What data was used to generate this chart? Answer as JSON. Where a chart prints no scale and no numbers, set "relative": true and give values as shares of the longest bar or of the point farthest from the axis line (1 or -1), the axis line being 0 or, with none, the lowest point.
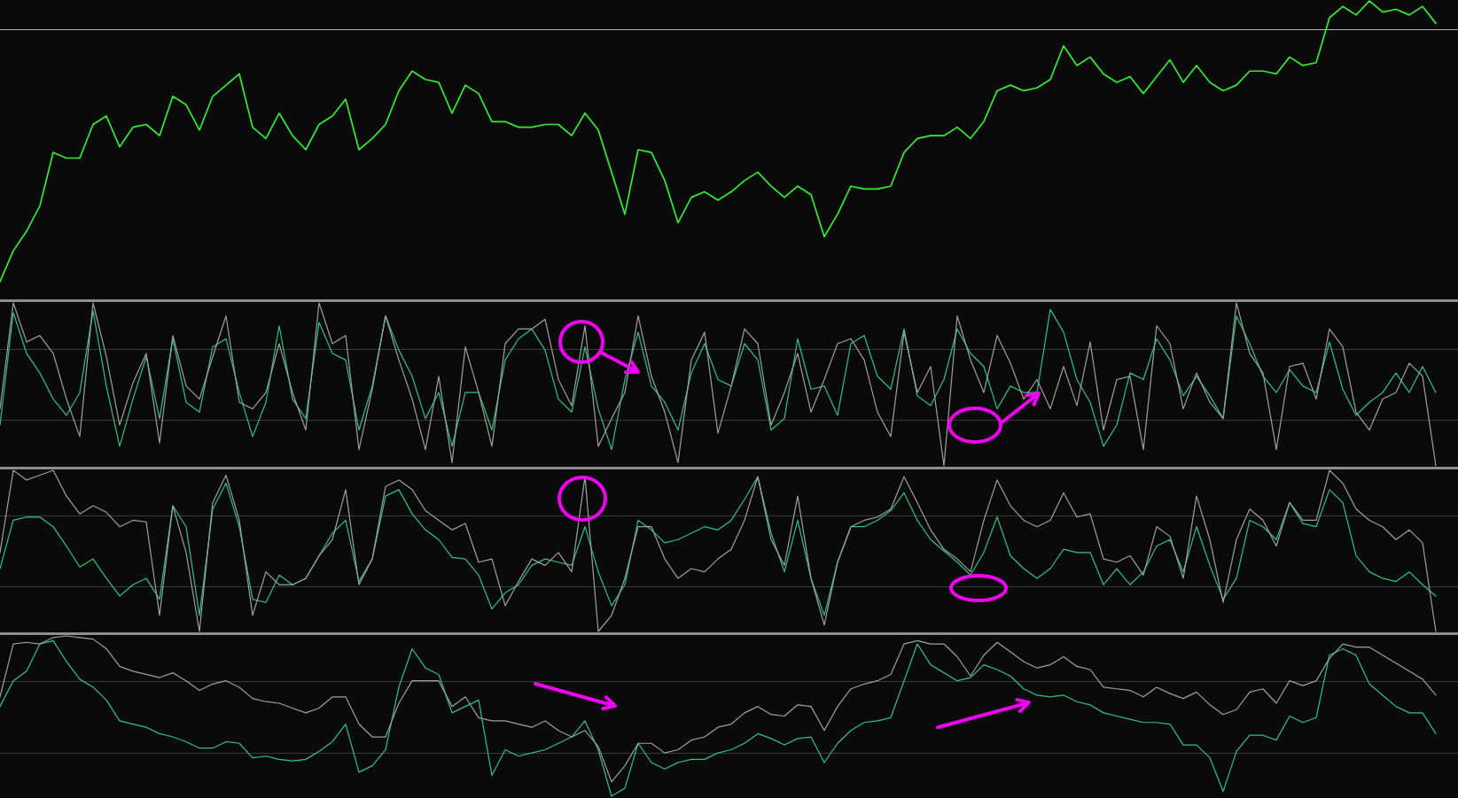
{
  "chart_data": [
    {
      "type": "line",
      "relative": true,
      "categories": [
        null,
        null,
        null,
        null,
        null,
        null,
        null,
        null,
        null,
        null,
        null,
        null,
        null,
        null,
        null,
        null,
        null,
        null,
        null,
        null,
        null,
        null,
        null,
        null,
        null,
        null,
        null,
        null,
        null,
        null,
        null,
        null,
        null,
        null,
        null,
        null,
        null,
        null,
        null,
        null,
        null,
        null,
        null,
        null,
        null,
        null,
        null,
        null,
        null,
        null,
        null,
        null,
        null,
        null,
        null,
        null,
        null,
        null,
        null,
        null,
        null,
        null,
        null,
        null,
        null,
        null,
        null,
        null,
        null,
        null,
        null,
        null,
        null,
        null,
        null,
        null,
        null,
        null,
        null,
        null,
        null,
        null,
        null,
        null,
        null,
        null,
        null,
        null,
        null,
        null,
        null,
        null,
        null,
        null,
        null,
        null,
        null,
        null,
        null,
        null,
        null,
        null,
        null,
        null,
        null,
        null,
        null,
        null,
        null
      ],
      "series": [
        {
          "color": "#33ee33",
          "values": [
            0.0,
            0.11,
            0.18,
            0.27,
            0.46,
            0.44,
            0.44,
            0.56,
            0.59,
            0.48,
            0.55,
            0.56,
            0.52,
            0.66,
            0.63,
            0.54,
            0.66,
            0.7,
            0.74,
            0.55,
            0.51,
            0.6,
            0.52,
            0.47,
            0.56,
            0.59,
            0.65,
            0.47,
            0.51,
            0.56,
            0.68,
            0.75,
            0.72,
            0.71,
            0.6,
            0.7,
            0.67,
            0.57,
            0.57,
            0.55,
            0.55,
            0.56,
            0.56,
            0.52,
            0.6,
            0.54,
            0.39,
            0.24,
            0.47,
            0.46,
            0.36,
            0.21,
            0.3,
            0.32,
            0.29,
            0.32,
            0.36,
            0.39,
            0.34,
            0.3,
            0.34,
            0.31,
            0.16,
            0.24,
            0.34,
            0.33,
            0.33,
            0.34,
            0.46,
            0.51,
            0.52,
            0.52,
            0.55,
            0.51,
            0.57,
            0.68,
            0.7,
            0.68,
            0.69,
            0.72,
            0.84,
            0.77,
            0.8,
            0.74,
            0.71,
            0.73,
            0.67,
            0.73,
            0.79,
            0.71,
            0.77,
            0.71,
            0.68,
            0.7,
            0.75,
            0.75,
            0.74,
            0.8,
            0.77,
            0.78,
            0.94,
            0.98,
            0.95,
            1.0,
            0.96,
            0.97,
            0.95,
            0.98,
            0.92
          ]
        }
      ],
      "ref_lines": [
        {
          "axis": "y",
          "value": 0.9,
          "color": "#b4b4b4"
        }
      ]
    },
    {
      "type": "line",
      "relative": true,
      "categories": [
        null,
        null,
        null,
        null,
        null,
        null,
        null,
        null,
        null,
        null,
        null,
        null,
        null,
        null,
        null,
        null,
        null,
        null,
        null,
        null,
        null,
        null,
        null,
        null,
        null,
        null,
        null,
        null,
        null,
        null,
        null,
        null,
        null,
        null,
        null,
        null,
        null,
        null,
        null,
        null,
        null,
        null,
        null,
        null,
        null,
        null,
        null,
        null,
        null,
        null,
        null,
        null,
        null,
        null,
        null,
        null,
        null,
        null,
        null,
        null,
        null,
        null,
        null,
        null,
        null,
        null,
        null,
        null,
        null,
        null,
        null,
        null,
        null,
        null,
        null,
        null,
        null,
        null,
        null,
        null,
        null,
        null,
        null,
        null,
        null,
        null,
        null,
        null,
        null,
        null,
        null,
        null,
        null,
        null,
        null,
        null,
        null,
        null,
        null,
        null,
        null,
        null,
        null,
        null,
        null,
        null,
        null,
        null,
        null
      ],
      "series": [
        {
          "color": "#a0a0a0",
          "values": [
            0.35,
            1,
            0.76,
            0.8,
            0.69,
            0.41,
            0.18,
            1,
            0.67,
            0.25,
            0.51,
            0.69,
            0.14,
            0.8,
            0.49,
            0.41,
            0.67,
            0.92,
            0.39,
            0.35,
            0.45,
            0.75,
            0.45,
            0.22,
            1,
            0.75,
            0.8,
            0.1,
            0.47,
            0.92,
            0.65,
            0.41,
            0.1,
            0.55,
            0.02,
            0.73,
            0.45,
            0.12,
            0.75,
            0.84,
            0.84,
            0.9,
            0.53,
            0.37,
            0.86,
            0.12,
            0.29,
            0.45,
            0.92,
            0.55,
            0.33,
            0.02,
            0.65,
            0.82,
            0.2,
            0.49,
            0.84,
            0.75,
            0.25,
            0.45,
            0.69,
            0.33,
            0.53,
            0.75,
            0.78,
            0.65,
            0.33,
            0.18,
            0.82,
            0.45,
            0.61,
            0,
            0.92,
            0.65,
            0.45,
            0.8,
            0.63,
            0.41,
            0.53,
            0.35,
            0.61,
            0.37,
            0.76,
            0.22,
            0.53,
            0.55,
            0.1,
            0.86,
            0.75,
            0.35,
            0.57,
            0.39,
            0.29,
            1,
            0.69,
            0.57,
            0.1,
            0.61,
            0.63,
            0.41,
            0.84,
            0.73,
            0.33,
            0.22,
            0.41,
            0.45,
            0.63,
            0.55,
            0
          ]
        },
        {
          "color": "#2fc487",
          "values": [
            0.25,
            0.94,
            0.69,
            0.57,
            0.41,
            0.31,
            0.45,
            0.95,
            0.49,
            0.12,
            0.41,
            0.67,
            0.29,
            0.78,
            0.39,
            0.33,
            0.73,
            0.78,
            0.45,
            0.18,
            0.39,
            0.86,
            0.41,
            0.29,
            0.88,
            0.69,
            0.65,
            0.22,
            0.49,
            0.92,
            0.71,
            0.55,
            0.29,
            0.45,
            0.12,
            0.45,
            0.45,
            0.22,
            0.65,
            0.78,
            0.84,
            0.71,
            0.41,
            0.33,
            0.73,
            0.35,
            0.1,
            0.53,
            0.82,
            0.49,
            0.39,
            0.22,
            0.57,
            0.75,
            0.53,
            0.49,
            0.75,
            0.65,
            0.22,
            0.29,
            0.78,
            0.47,
            0.49,
            0.31,
            0.75,
            0.8,
            0.55,
            0.47,
            0.84,
            0.43,
            0.37,
            0.53,
            0.84,
            0.69,
            0.61,
            0.35,
            0.49,
            0.45,
            0.45,
            0.96,
            0.82,
            0.53,
            0.39,
            0.12,
            0.25,
            0.57,
            0.53,
            0.78,
            0.65,
            0.43,
            0.55,
            0.43,
            0.29,
            0.92,
            0.75,
            0.55,
            0.45,
            0.59,
            0.49,
            0.45,
            0.76,
            0.47,
            0.31,
            0.39,
            0.45,
            0.57,
            0.45,
            0.61,
            0.45
          ]
        }
      ],
      "ref_lines": [
        {
          "axis": "y",
          "value": 0.72,
          "color": "#3a3a3a"
        },
        {
          "axis": "y",
          "value": 0.28,
          "color": "#3a3a3a"
        }
      ]
    },
    {
      "type": "line",
      "relative": true,
      "categories": [
        null,
        null,
        null,
        null,
        null,
        null,
        null,
        null,
        null,
        null,
        null,
        null,
        null,
        null,
        null,
        null,
        null,
        null,
        null,
        null,
        null,
        null,
        null,
        null,
        null,
        null,
        null,
        null,
        null,
        null,
        null,
        null,
        null,
        null,
        null,
        null,
        null,
        null,
        null,
        null,
        null,
        null,
        null,
        null,
        null,
        null,
        null,
        null,
        null,
        null,
        null,
        null,
        null,
        null,
        null,
        null,
        null,
        null,
        null,
        null,
        null,
        null,
        null,
        null,
        null,
        null,
        null,
        null,
        null,
        null,
        null,
        null,
        null,
        null,
        null,
        null,
        null,
        null,
        null,
        null,
        null,
        null,
        null,
        null,
        null,
        null,
        null,
        null,
        null,
        null,
        null,
        null,
        null,
        null,
        null,
        null,
        null,
        null,
        null,
        null,
        null,
        null,
        null,
        null,
        null,
        null,
        null,
        null,
        null
      ],
      "series": [
        {
          "color": "#a0a0a0",
          "values": [
            0.49,
            1,
            0.94,
            0.97,
            1,
            0.84,
            0.73,
            0.78,
            0.74,
            0.65,
            0.69,
            0.68,
            0.1,
            0.78,
            0.49,
            0,
            0.8,
            0.97,
            0.69,
            0.1,
            0.37,
            0.29,
            0.29,
            0.33,
            0.47,
            0.57,
            0.88,
            0.29,
            0.45,
            0.9,
            0.94,
            0.88,
            0.75,
            0.69,
            0.63,
            0.67,
            0.43,
            0.45,
            0.16,
            0.31,
            0.45,
            0.41,
            0.49,
            0.37,
            0.96,
            0,
            0.1,
            0.33,
            0.65,
            0.65,
            0.45,
            0.33,
            0.39,
            0.37,
            0.45,
            0.51,
            0.69,
            0.96,
            0.57,
            0.41,
            0.84,
            0.33,
            0.04,
            0.43,
            0.65,
            0.69,
            0.71,
            0.76,
            0.96,
            0.8,
            0.63,
            0.51,
            0.45,
            0.37,
            0.69,
            0.94,
            0.78,
            0.69,
            0.65,
            0.69,
            0.86,
            0.71,
            0.73,
            0.45,
            0.43,
            0.47,
            0.35,
            0.65,
            0.59,
            0.33,
            0.84,
            0.57,
            0.18,
            0.57,
            0.76,
            0.69,
            0.53,
            0.8,
            0.69,
            0.69,
            1,
            0.92,
            0.76,
            0.69,
            0.65,
            0.57,
            0.63,
            0.55,
            0
          ]
        },
        {
          "color": "#2fc487",
          "values": [
            0.39,
            0.69,
            0.71,
            0.71,
            0.65,
            0.53,
            0.4,
            0.45,
            0.33,
            0.22,
            0.29,
            0.33,
            0.2,
            0.78,
            0.65,
            0.1,
            0.76,
            0.92,
            0.65,
            0.2,
            0.18,
            0.35,
            0.29,
            0.33,
            0.47,
            0.61,
            0.69,
            0.31,
            0.45,
            0.84,
            0.88,
            0.73,
            0.63,
            0.57,
            0.46,
            0.45,
            0.35,
            0.14,
            0.24,
            0.29,
            0.41,
            0.45,
            0.43,
            0.41,
            0.65,
            0.37,
            0.16,
            0.29,
            0.69,
            0.63,
            0.55,
            0.57,
            0.61,
            0.65,
            0.63,
            0.69,
            0.82,
            0.96,
            0.61,
            0.37,
            0.69,
            0.33,
            0.1,
            0.43,
            0.65,
            0.65,
            0.69,
            0.75,
            0.86,
            0.69,
            0.57,
            0.5,
            0.43,
            0.35,
            0.49,
            0.71,
            0.47,
            0.39,
            0.33,
            0.39,
            0.51,
            0.49,
            0.49,
            0.29,
            0.39,
            0.29,
            0.37,
            0.53,
            0.57,
            0.37,
            0.65,
            0.41,
            0.2,
            0.33,
            0.69,
            0.65,
            0.57,
            0.8,
            0.67,
            0.65,
            0.88,
            0.8,
            0.47,
            0.37,
            0.33,
            0.31,
            0.37,
            0.29,
            0.22
          ]
        }
      ],
      "ref_lines": [
        {
          "axis": "y",
          "value": 0.72,
          "color": "#3a3a3a"
        },
        {
          "axis": "y",
          "value": 0.28,
          "color": "#3a3a3a"
        }
      ]
    },
    {
      "type": "line",
      "relative": true,
      "categories": [
        null,
        null,
        null,
        null,
        null,
        null,
        null,
        null,
        null,
        null,
        null,
        null,
        null,
        null,
        null,
        null,
        null,
        null,
        null,
        null,
        null,
        null,
        null,
        null,
        null,
        null,
        null,
        null,
        null,
        null,
        null,
        null,
        null,
        null,
        null,
        null,
        null,
        null,
        null,
        null,
        null,
        null,
        null,
        null,
        null,
        null,
        null,
        null,
        null,
        null,
        null,
        null,
        null,
        null,
        null,
        null,
        null,
        null,
        null,
        null,
        null,
        null,
        null,
        null,
        null,
        null,
        null,
        null,
        null,
        null,
        null,
        null,
        null,
        null,
        null,
        null,
        null,
        null,
        null,
        null,
        null,
        null,
        null,
        null,
        null,
        null,
        null,
        null,
        null,
        null,
        null,
        null,
        null,
        null,
        null,
        null,
        null,
        null,
        null,
        null,
        null,
        null,
        null,
        null,
        null,
        null,
        null,
        null,
        null
      ],
      "series": [
        {
          "color": "#a0a0a0",
          "values": [
            0.62,
            0.95,
            0.96,
            0.95,
            0.99,
            1,
            0.99,
            0.98,
            0.92,
            0.81,
            0.78,
            0.76,
            0.74,
            0.77,
            0.72,
            0.66,
            0.7,
            0.72,
            0.68,
            0.61,
            0.59,
            0.58,
            0.55,
            0.52,
            0.55,
            0.62,
            0.62,
            0.45,
            0.37,
            0.37,
            0.58,
            0.72,
            0.72,
            0.72,
            0.56,
            0.62,
            0.49,
            0.47,
            0.47,
            0.45,
            0.43,
            0.47,
            0.41,
            0.37,
            0.41,
            0.31,
            0.09,
            0.19,
            0.33,
            0.33,
            0.27,
            0.29,
            0.35,
            0.37,
            0.43,
            0.45,
            0.52,
            0.56,
            0.51,
            0.5,
            0.57,
            0.56,
            0.41,
            0.56,
            0.67,
            0.7,
            0.72,
            0.76,
            0.95,
            0.97,
            0.95,
            0.95,
            0.87,
            0.75,
            0.88,
            0.96,
            0.9,
            0.84,
            0.8,
            0.82,
            0.87,
            0.81,
            0.79,
            0.68,
            0.67,
            0.66,
            0.62,
            0.68,
            0.64,
            0.61,
            0.65,
            0.57,
            0.51,
            0.54,
            0.65,
            0.67,
            0.58,
            0.72,
            0.69,
            0.72,
            0.86,
            0.95,
            0.93,
            0.93,
            0.88,
            0.83,
            0.78,
            0.73,
            0.63
          ]
        },
        {
          "color": "#2fc487",
          "values": [
            0.56,
            0.72,
            0.78,
            0.95,
            0.97,
            0.84,
            0.73,
            0.68,
            0.6,
            0.47,
            0.45,
            0.43,
            0.39,
            0.37,
            0.34,
            0.3,
            0.3,
            0.34,
            0.33,
            0.24,
            0.25,
            0.23,
            0.22,
            0.23,
            0.28,
            0.34,
            0.45,
            0.15,
            0.19,
            0.29,
            0.68,
            0.92,
            0.8,
            0.76,
            0.52,
            0.56,
            0.6,
            0.13,
            0.29,
            0.25,
            0.27,
            0.29,
            0.33,
            0.37,
            0.47,
            0.29,
            0,
            0.05,
            0.33,
            0.21,
            0.17,
            0.21,
            0.23,
            0.23,
            0.27,
            0.29,
            0.33,
            0.39,
            0.36,
            0.32,
            0.36,
            0.37,
            0.21,
            0.33,
            0.41,
            0.46,
            0.47,
            0.49,
            0.72,
            0.95,
            0.82,
            0.77,
            0.72,
            0.74,
            0.82,
            0.79,
            0.75,
            0.67,
            0.63,
            0.62,
            0.63,
            0.59,
            0.57,
            0.52,
            0.5,
            0.48,
            0.46,
            0.46,
            0.45,
            0.32,
            0.32,
            0.24,
            0.03,
            0.28,
            0.38,
            0.38,
            0.35,
            0.5,
            0.46,
            0.49,
            0.88,
            0.92,
            0.88,
            0.7,
            0.63,
            0.56,
            0.52,
            0.52,
            0.39
          ]
        }
      ],
      "ref_lines": [
        {
          "axis": "y",
          "value": 0.72,
          "color": "#3a3a3a"
        },
        {
          "axis": "y",
          "value": 0.27,
          "color": "#3a3a3a"
        }
      ]
    }
  ]
}
